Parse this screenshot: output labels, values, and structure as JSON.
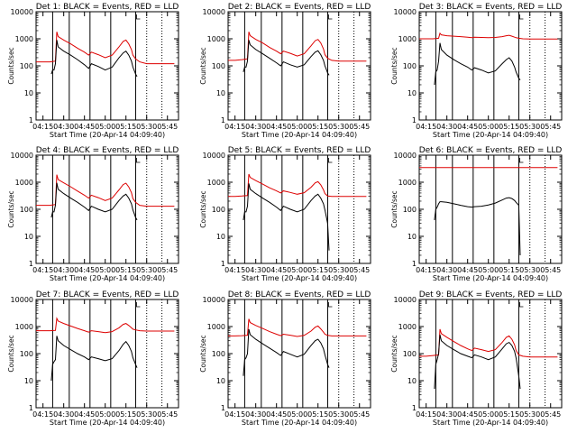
{
  "common": {
    "xticks": [
      "04:15",
      "04:30",
      "04:45",
      "05:00",
      "05:15",
      "05:30",
      "05:45"
    ],
    "xtick_minutes": [
      255,
      270,
      285,
      300,
      315,
      330,
      345
    ],
    "xrange_minutes": [
      250,
      353
    ],
    "yticks": [
      "1",
      "10",
      "100",
      "1000",
      "10000"
    ],
    "ytick_values": [
      1,
      10,
      100,
      1000,
      10000
    ],
    "ylabel": "Counts/sec",
    "xlabel": "Start Time (20-Apr-14 04:09:40)",
    "solid_vlines_minutes": [
      262,
      274,
      289,
      304,
      322
    ],
    "dotted_vlines_minutes": [
      330,
      341
    ],
    "colors": {
      "events": "#000000",
      "lld": "#dd0000"
    },
    "black_x": [
      261,
      262,
      263,
      264,
      265,
      266,
      270,
      275,
      280,
      285,
      288,
      290,
      295,
      300,
      305,
      310,
      313,
      315,
      317,
      319,
      320,
      322,
      323
    ],
    "red_x": [
      250,
      255,
      260,
      264,
      265,
      266,
      270,
      275,
      280,
      285,
      288,
      290,
      295,
      300,
      305,
      310,
      313,
      315,
      317,
      319,
      320,
      322,
      325,
      330,
      335,
      340,
      345,
      350
    ]
  },
  "chart_data": [
    {
      "type": "line",
      "title": "Det 1: BLACK = Events, RED = LLD",
      "series": [
        {
          "values": [
            50,
            70,
            70,
            120,
            900,
            500,
            350,
            250,
            170,
            110,
            80,
            120,
            95,
            70,
            90,
            200,
            300,
            350,
            250,
            150,
            90,
            50,
            40
          ]
        },
        {
          "values": [
            140,
            140,
            140,
            150,
            1800,
            1200,
            900,
            650,
            450,
            320,
            250,
            320,
            260,
            200,
            250,
            500,
            800,
            900,
            650,
            400,
            250,
            180,
            140,
            120,
            120,
            120,
            120,
            120
          ]
        }
      ]
    },
    {
      "type": "line",
      "title": "Det 2: BLACK = Events, RED = LLD",
      "series": [
        {
          "values": [
            60,
            90,
            90,
            150,
            900,
            600,
            400,
            280,
            190,
            130,
            100,
            140,
            110,
            90,
            110,
            220,
            320,
            360,
            260,
            160,
            100,
            55,
            45
          ]
        },
        {
          "values": [
            160,
            160,
            170,
            180,
            1800,
            1300,
            950,
            700,
            480,
            350,
            280,
            350,
            290,
            230,
            280,
            550,
            850,
            950,
            700,
            420,
            260,
            190,
            160,
            150,
            150,
            150,
            150,
            150
          ]
        }
      ]
    },
    {
      "type": "line",
      "title": "Det 3: BLACK = Events, RED = LLD",
      "series": [
        {
          "values": [
            20,
            60,
            70,
            150,
            700,
            400,
            250,
            170,
            120,
            90,
            70,
            85,
            70,
            55,
            65,
            120,
            170,
            200,
            150,
            90,
            60,
            35,
            30
          ]
        },
        {
          "values": [
            1000,
            1000,
            1000,
            1050,
            1600,
            1400,
            1300,
            1250,
            1200,
            1150,
            1100,
            1150,
            1120,
            1100,
            1120,
            1200,
            1300,
            1350,
            1250,
            1150,
            1100,
            1050,
            1000,
            980,
            980,
            980,
            980,
            980
          ]
        }
      ]
    },
    {
      "type": "line",
      "title": "Det 4: BLACK = Events, RED = LLD",
      "series": [
        {
          "values": [
            50,
            80,
            80,
            140,
            950,
            550,
            380,
            260,
            180,
            120,
            90,
            130,
            100,
            80,
            100,
            210,
            310,
            360,
            260,
            160,
            95,
            50,
            40
          ]
        },
        {
          "values": [
            140,
            140,
            140,
            150,
            1900,
            1250,
            950,
            680,
            470,
            330,
            260,
            330,
            270,
            210,
            260,
            520,
            820,
            920,
            670,
            410,
            250,
            180,
            140,
            130,
            130,
            130,
            130,
            130
          ]
        }
      ]
    },
    {
      "type": "line",
      "title": "Det 5: BLACK = Events, RED = LLD",
      "series": [
        {
          "values": [
            40,
            80,
            80,
            130,
            900,
            550,
            380,
            260,
            180,
            120,
            90,
            130,
            100,
            80,
            100,
            210,
            310,
            360,
            260,
            160,
            95,
            30,
            3
          ]
        },
        {
          "values": [
            300,
            300,
            310,
            320,
            2000,
            1500,
            1150,
            850,
            620,
            480,
            400,
            480,
            420,
            360,
            410,
            650,
            950,
            1050,
            800,
            520,
            380,
            310,
            300,
            300,
            300,
            300,
            300,
            300
          ]
        }
      ]
    },
    {
      "type": "line",
      "title": "Det 6: BLACK = Events, RED = LLD",
      "series": [
        {
          "values": [
            40,
            100,
            120,
            160,
            190,
            190,
            180,
            160,
            140,
            125,
            120,
            125,
            130,
            145,
            170,
            220,
            260,
            270,
            250,
            210,
            180,
            140,
            2
          ]
        },
        {
          "values": [
            3500,
            3500,
            3500,
            3500,
            3500,
            3500,
            3500,
            3500,
            3500,
            3500,
            3500,
            3500,
            3500,
            3500,
            3500,
            3500,
            3500,
            3500,
            3500,
            3500,
            3500,
            3500,
            3500,
            3500,
            3500,
            3500,
            3500,
            3500
          ]
        }
      ]
    },
    {
      "type": "line",
      "title": "Det 7: BLACK = Events, RED = LLD",
      "series": [
        {
          "values": [
            10,
            40,
            50,
            60,
            450,
            300,
            200,
            140,
            100,
            75,
            60,
            75,
            65,
            55,
            65,
            130,
            220,
            280,
            200,
            120,
            70,
            40,
            30
          ]
        },
        {
          "values": [
            700,
            700,
            700,
            720,
            2000,
            1600,
            1300,
            1050,
            850,
            700,
            620,
            700,
            650,
            600,
            650,
            900,
            1200,
            1300,
            1100,
            900,
            800,
            750,
            700,
            680,
            680,
            680,
            680,
            680
          ]
        }
      ]
    },
    {
      "type": "line",
      "title": "Det 8: BLACK = Events, RED = LLD",
      "series": [
        {
          "values": [
            15,
            60,
            70,
            100,
            800,
            500,
            340,
            230,
            160,
            110,
            85,
            120,
            95,
            75,
            95,
            200,
            300,
            340,
            250,
            150,
            90,
            40,
            30
          ]
        },
        {
          "values": [
            450,
            450,
            460,
            480,
            1900,
            1400,
            1100,
            850,
            650,
            520,
            460,
            520,
            480,
            430,
            470,
            680,
            950,
            1050,
            820,
            620,
            520,
            470,
            450,
            450,
            450,
            450,
            450,
            450
          ]
        }
      ]
    },
    {
      "type": "line",
      "title": "Det 9: BLACK = Events, RED = LLD",
      "series": [
        {
          "values": [
            5,
            40,
            60,
            100,
            500,
            300,
            200,
            140,
            100,
            80,
            70,
            90,
            75,
            60,
            75,
            150,
            230,
            260,
            200,
            120,
            70,
            15,
            5
          ]
        },
        {
          "values": [
            80,
            80,
            85,
            90,
            800,
            550,
            400,
            280,
            200,
            150,
            130,
            160,
            140,
            120,
            140,
            260,
            400,
            450,
            340,
            210,
            130,
            90,
            80,
            75,
            75,
            75,
            75,
            75
          ]
        }
      ]
    }
  ]
}
